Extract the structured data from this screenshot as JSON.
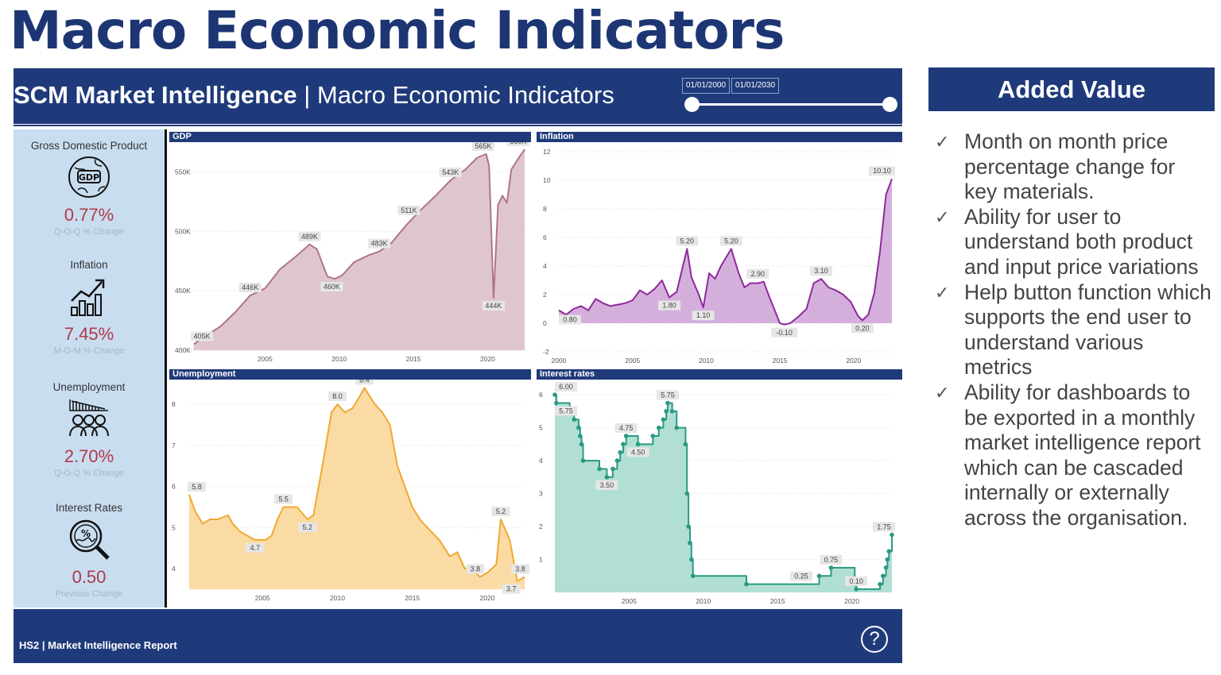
{
  "slide_title": "Macro Economic Indicators",
  "header": {
    "title_bold": "SCM Market Intelligence",
    "title_rest": " | Macro Economic Indicators",
    "date_start": "01/01/2000",
    "date_end": "01/01/2030",
    "slider_range_fraction": [
      0,
      1
    ]
  },
  "kpis": [
    {
      "title": "Gross Domestic Product",
      "icon": "gdp-globe-icon",
      "value": "0.77%",
      "sub": "Q-O-Q % Change"
    },
    {
      "title": "Inflation",
      "icon": "growth-chart-icon",
      "value": "7.45%",
      "sub": "M-O-M % Change"
    },
    {
      "title": "Unemployment",
      "icon": "people-decline-icon",
      "value": "2.70%",
      "sub": "Q-O-Q % Change"
    },
    {
      "title": "Interest Rates",
      "icon": "percent-magnifier-icon",
      "value": "0.50",
      "sub": "Previous Change"
    }
  ],
  "colors": {
    "navy": "#1f3a7a",
    "kpi_value": "#b03a48",
    "gdp": "#b07585",
    "inflation": "#8e2a9c",
    "unemployment": "#f0a830",
    "interest": "#2a9a84"
  },
  "chart_data": [
    {
      "type": "area",
      "title": "GDP",
      "xticks": [
        "2005",
        "2010",
        "2015",
        "2020"
      ],
      "yticks": [
        {
          "v": 400,
          "t": "400K"
        },
        {
          "v": 450,
          "t": "450K"
        },
        {
          "v": 500,
          "t": "500K"
        },
        {
          "v": 550,
          "t": "550K"
        }
      ],
      "ylim": [
        400,
        575
      ],
      "xlim": [
        2000,
        2022.6
      ],
      "series": [
        [
          2000.2,
          405
        ],
        [
          2001,
          412
        ],
        [
          2002,
          420
        ],
        [
          2003,
          432
        ],
        [
          2004,
          446
        ],
        [
          2005,
          452
        ],
        [
          2006,
          468
        ],
        [
          2007,
          478
        ],
        [
          2008,
          489
        ],
        [
          2008.5,
          485
        ],
        [
          2009.2,
          462
        ],
        [
          2009.7,
          460
        ],
        [
          2010.2,
          463
        ],
        [
          2011,
          474
        ],
        [
          2012,
          480
        ],
        [
          2012.7,
          483
        ],
        [
          2013.5,
          490
        ],
        [
          2014.5,
          505
        ],
        [
          2015.5,
          518
        ],
        [
          2016.5,
          530
        ],
        [
          2017.5,
          543
        ],
        [
          2018.5,
          552
        ],
        [
          2019.3,
          562
        ],
        [
          2019.9,
          565
        ],
        [
          2020.1,
          555
        ],
        [
          2020.4,
          444
        ],
        [
          2020.7,
          522
        ],
        [
          2021,
          530
        ],
        [
          2021.3,
          524
        ],
        [
          2021.6,
          552
        ],
        [
          2022,
          560
        ],
        [
          2022.5,
          569
        ]
      ],
      "labels": [
        {
          "x": 2000.2,
          "y": 405,
          "t": "405K"
        },
        {
          "x": 2004,
          "y": 446,
          "t": "446K"
        },
        {
          "x": 2008,
          "y": 489,
          "t": "489K"
        },
        {
          "x": 2009.5,
          "y": 460,
          "t": "460K"
        },
        {
          "x": 2012.7,
          "y": 483,
          "t": "483K"
        },
        {
          "x": 2014.7,
          "y": 511,
          "t": "511K"
        },
        {
          "x": 2017.5,
          "y": 543,
          "t": "543K"
        },
        {
          "x": 2019.7,
          "y": 565,
          "t": "565K"
        },
        {
          "x": 2022.3,
          "y": 569,
          "t": "569K"
        },
        {
          "x": 2020.4,
          "y": 444,
          "t": "444K"
        }
      ]
    },
    {
      "type": "area",
      "title": "Inflation",
      "xticks": [
        "2000",
        "2005",
        "2010",
        "2015",
        "2020"
      ],
      "yticks": [
        {
          "v": -2,
          "t": "-2"
        },
        {
          "v": 0,
          "t": "0"
        },
        {
          "v": 2,
          "t": "2"
        },
        {
          "v": 4,
          "t": "4"
        },
        {
          "v": 6,
          "t": "6"
        },
        {
          "v": 8,
          "t": "8"
        },
        {
          "v": 10,
          "t": "10"
        },
        {
          "v": 12,
          "t": "12"
        }
      ],
      "ylim": [
        -2,
        12
      ],
      "xlim": [
        2000,
        2022.6
      ],
      "series": [
        [
          2000,
          0.9
        ],
        [
          2000.5,
          0.6
        ],
        [
          2001,
          1.0
        ],
        [
          2001.5,
          1.2
        ],
        [
          2002,
          0.9
        ],
        [
          2002.5,
          1.7
        ],
        [
          2003,
          1.4
        ],
        [
          2003.5,
          1.2
        ],
        [
          2004,
          1.3
        ],
        [
          2004.5,
          1.4
        ],
        [
          2005,
          1.6
        ],
        [
          2005.5,
          2.3
        ],
        [
          2006,
          2.0
        ],
        [
          2006.5,
          2.4
        ],
        [
          2007,
          3.0
        ],
        [
          2007.5,
          1.8
        ],
        [
          2008,
          2.2
        ],
        [
          2008.7,
          5.2
        ],
        [
          2009,
          3.2
        ],
        [
          2009.5,
          2.0
        ],
        [
          2009.8,
          1.1
        ],
        [
          2010.2,
          3.5
        ],
        [
          2010.6,
          3.1
        ],
        [
          2011,
          4.0
        ],
        [
          2011.7,
          5.2
        ],
        [
          2012.2,
          3.5
        ],
        [
          2012.6,
          2.5
        ],
        [
          2013,
          2.8
        ],
        [
          2013.5,
          2.8
        ],
        [
          2013.9,
          2.9
        ],
        [
          2014.3,
          1.8
        ],
        [
          2015,
          0.0
        ],
        [
          2015.3,
          -0.1
        ],
        [
          2015.7,
          0.0
        ],
        [
          2016.3,
          0.5
        ],
        [
          2016.8,
          1.0
        ],
        [
          2017.3,
          2.8
        ],
        [
          2017.8,
          3.1
        ],
        [
          2018.3,
          2.5
        ],
        [
          2018.8,
          2.3
        ],
        [
          2019.3,
          2.0
        ],
        [
          2019.8,
          1.5
        ],
        [
          2020.3,
          0.5
        ],
        [
          2020.6,
          0.2
        ],
        [
          2021.0,
          0.6
        ],
        [
          2021.4,
          2.1
        ],
        [
          2021.8,
          5.1
        ],
        [
          2022.2,
          9.0
        ],
        [
          2022.6,
          10.1
        ]
      ],
      "labels": [
        {
          "x": 2000.3,
          "y": 0.8,
          "t": "0.80"
        },
        {
          "x": 2007.5,
          "y": 1.8,
          "t": "1.80"
        },
        {
          "x": 2008.7,
          "y": 5.2,
          "t": "5.20"
        },
        {
          "x": 2009.8,
          "y": 1.1,
          "t": "1.10"
        },
        {
          "x": 2011.7,
          "y": 5.2,
          "t": "5.20"
        },
        {
          "x": 2013.5,
          "y": 2.9,
          "t": "2.90"
        },
        {
          "x": 2015.3,
          "y": -0.1,
          "t": "-0.10"
        },
        {
          "x": 2017.8,
          "y": 3.1,
          "t": "3.10"
        },
        {
          "x": 2020.6,
          "y": 0.2,
          "t": "0.20"
        },
        {
          "x": 2022.6,
          "y": 10.1,
          "t": "10.10"
        }
      ]
    },
    {
      "type": "area",
      "title": "Unemployment",
      "xticks": [
        "2005",
        "2010",
        "2015",
        "2020"
      ],
      "yticks": [
        {
          "v": 4,
          "t": "4"
        },
        {
          "v": 5,
          "t": "5"
        },
        {
          "v": 6,
          "t": "6"
        },
        {
          "v": 7,
          "t": "7"
        },
        {
          "v": 8,
          "t": "8"
        }
      ],
      "ylim": [
        3.5,
        8.6
      ],
      "xlim": [
        2000,
        2022.6
      ],
      "series": [
        [
          2000.1,
          5.8
        ],
        [
          2000.5,
          5.4
        ],
        [
          2001,
          5.1
        ],
        [
          2001.5,
          5.2
        ],
        [
          2002,
          5.2
        ],
        [
          2002.7,
          5.3
        ],
        [
          2003,
          5.1
        ],
        [
          2003.5,
          4.9
        ],
        [
          2004,
          4.8
        ],
        [
          2004.5,
          4.7
        ],
        [
          2005.2,
          4.7
        ],
        [
          2005.6,
          4.8
        ],
        [
          2006,
          5.2
        ],
        [
          2006.4,
          5.5
        ],
        [
          2007.3,
          5.5
        ],
        [
          2008,
          5.2
        ],
        [
          2008.4,
          5.3
        ],
        [
          2009,
          6.5
        ],
        [
          2009.6,
          7.8
        ],
        [
          2010,
          8.0
        ],
        [
          2010.5,
          7.8
        ],
        [
          2011,
          7.9
        ],
        [
          2011.5,
          8.2
        ],
        [
          2011.8,
          8.4
        ],
        [
          2012.5,
          8.0
        ],
        [
          2013,
          7.8
        ],
        [
          2013.5,
          7.5
        ],
        [
          2014,
          6.5
        ],
        [
          2014.5,
          6.0
        ],
        [
          2015,
          5.5
        ],
        [
          2015.5,
          5.2
        ],
        [
          2016,
          5.0
        ],
        [
          2016.8,
          4.7
        ],
        [
          2017.5,
          4.3
        ],
        [
          2018,
          4.4
        ],
        [
          2018.5,
          4.0
        ],
        [
          2019,
          4.0
        ],
        [
          2019.5,
          3.8
        ],
        [
          2020,
          3.9
        ],
        [
          2020.6,
          4.1
        ],
        [
          2020.9,
          5.2
        ],
        [
          2021.5,
          4.7
        ],
        [
          2022,
          3.7
        ],
        [
          2022.5,
          3.8
        ]
      ],
      "labels": [
        {
          "x": 2000.1,
          "y": 5.8,
          "t": "5.8"
        },
        {
          "x": 2004.5,
          "y": 4.7,
          "t": "4.7"
        },
        {
          "x": 2006.4,
          "y": 5.5,
          "t": "5.5"
        },
        {
          "x": 2008,
          "y": 5.2,
          "t": "5.2"
        },
        {
          "x": 2010,
          "y": 8.0,
          "t": "8.0"
        },
        {
          "x": 2011.8,
          "y": 8.4,
          "t": "8.4"
        },
        {
          "x": 2019.2,
          "y": 3.8,
          "t": "3.8"
        },
        {
          "x": 2020.9,
          "y": 5.2,
          "t": "5.2"
        },
        {
          "x": 2021.6,
          "y": 3.7,
          "t": "3.7"
        },
        {
          "x": 2022.5,
          "y": 3.8,
          "t": "3.8"
        }
      ]
    },
    {
      "type": "step-area",
      "title": "Interest rates",
      "xticks": [
        "2005",
        "2010",
        "2015",
        "2020"
      ],
      "yticks": [
        {
          "v": 1,
          "t": "1"
        },
        {
          "v": 2,
          "t": "2"
        },
        {
          "v": 3,
          "t": "3"
        },
        {
          "v": 4,
          "t": "4"
        },
        {
          "v": 5,
          "t": "5"
        },
        {
          "v": 6,
          "t": "6"
        }
      ],
      "ylim": [
        0,
        6.1
      ],
      "xlim": [
        2000,
        2022.7
      ],
      "series": [
        [
          2000,
          6.0
        ],
        [
          2000.1,
          5.75
        ],
        [
          2001,
          5.5
        ],
        [
          2001.3,
          5.25
        ],
        [
          2001.6,
          5.0
        ],
        [
          2001.7,
          4.75
        ],
        [
          2001.8,
          4.5
        ],
        [
          2001.9,
          4.0
        ],
        [
          2003,
          3.75
        ],
        [
          2003.5,
          3.5
        ],
        [
          2003.9,
          3.75
        ],
        [
          2004.2,
          4.0
        ],
        [
          2004.4,
          4.25
        ],
        [
          2004.6,
          4.5
        ],
        [
          2004.8,
          4.75
        ],
        [
          2005.6,
          4.5
        ],
        [
          2006.6,
          4.75
        ],
        [
          2007.0,
          5.0
        ],
        [
          2007.3,
          5.25
        ],
        [
          2007.5,
          5.5
        ],
        [
          2007.6,
          5.75
        ],
        [
          2007.9,
          5.5
        ],
        [
          2008.2,
          5.0
        ],
        [
          2008.8,
          4.5
        ],
        [
          2008.9,
          3.0
        ],
        [
          2009.0,
          2.0
        ],
        [
          2009.1,
          1.5
        ],
        [
          2009.2,
          1.0
        ],
        [
          2009.3,
          0.5
        ],
        [
          2012.9,
          0.25
        ],
        [
          2017.8,
          0.5
        ],
        [
          2018.6,
          0.75
        ],
        [
          2020.2,
          0.25
        ],
        [
          2020.3,
          0.1
        ],
        [
          2021.9,
          0.25
        ],
        [
          2022.1,
          0.5
        ],
        [
          2022.3,
          0.75
        ],
        [
          2022.4,
          1.0
        ],
        [
          2022.5,
          1.25
        ],
        [
          2022.7,
          1.75
        ]
      ],
      "labels": [
        {
          "x": 2000.2,
          "y": 6.0,
          "t": "6.00"
        },
        {
          "x": 2000.3,
          "y": 5.75,
          "t": "5.75"
        },
        {
          "x": 2004.8,
          "y": 4.75,
          "t": "4.75"
        },
        {
          "x": 2003.5,
          "y": 3.5,
          "t": "3.50"
        },
        {
          "x": 2005.6,
          "y": 4.5,
          "t": "4.50"
        },
        {
          "x": 2007.6,
          "y": 5.75,
          "t": "5.75"
        },
        {
          "x": 2016.6,
          "y": 0.25,
          "t": "0.25"
        },
        {
          "x": 2018.6,
          "y": 0.75,
          "t": "0.75"
        },
        {
          "x": 2020.3,
          "y": 0.1,
          "t": "0.10"
        },
        {
          "x": 2022.7,
          "y": 1.75,
          "t": "1.75"
        }
      ]
    }
  ],
  "footer": {
    "text": "HS2 | Market Intelligence Report",
    "help_label": "?"
  },
  "added_value": {
    "title": "Added Value",
    "check": "✓",
    "items": [
      "Month on month price percentage change for key materials.",
      "Ability for user to understand both product and input price variations",
      "Help button function which supports the end user to understand various metrics",
      "Ability for dashboards to be exported in a monthly market intelligence report which can be cascaded internally or externally across the organisation."
    ]
  }
}
